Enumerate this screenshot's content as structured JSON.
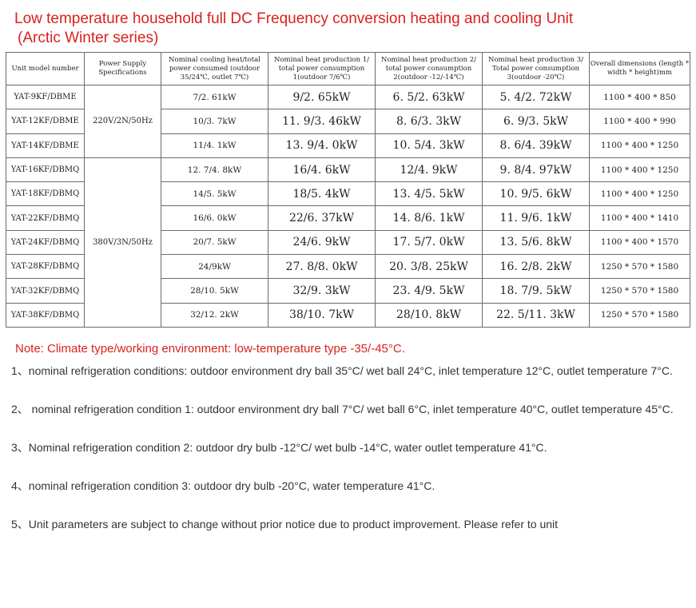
{
  "title": {
    "line1": "Low temperature household full DC Frequency conversion heating and cooling Unit",
    "line2": "(Arctic Winter series)"
  },
  "table": {
    "headers": [
      "Unit model number",
      "Power Supply Specifications",
      "Nominal cooling heat/total power consumed (outdoor 35/24℃, outlet 7℃)",
      "Nominal heat production 1/ total power consumption 1(outdoor 7/6℃)",
      "Nominal heat production 2/ total power consumption 2(outdoor -12/-14℃)",
      "Nominal heat production 3/ Total power consumption 3(outdoor -20℃)",
      "Overall dimensions (length * width * height)mm"
    ],
    "power_groups": [
      "220V/2N/50Hz",
      "380V/3N/50Hz"
    ],
    "rows": [
      {
        "model": "YAT-9KF/DBME",
        "cool": "7/2. 61kW",
        "h1": "9/2. 65kW",
        "h2": "6. 5/2. 63kW",
        "h3": "5. 4/2. 72kW",
        "dim": "1100 * 400 * 850"
      },
      {
        "model": "YAT-12KF/DBME",
        "cool": "10/3. 7kW",
        "h1": "11. 9/3. 46kW",
        "h2": "8. 6/3. 3kW",
        "h3": "6. 9/3. 5kW",
        "dim": "1100 * 400 * 990"
      },
      {
        "model": "YAT-14KF/DBME",
        "cool": "11/4. 1kW",
        "h1": "13. 9/4. 0kW",
        "h2": "10. 5/4. 3kW",
        "h3": "8. 6/4. 39kW",
        "dim": "1100 * 400 * 1250"
      },
      {
        "model": "YAT-16KF/DBMQ",
        "cool": "12. 7/4. 8kW",
        "h1": "16/4. 6kW",
        "h2": "12/4. 9kW",
        "h3": "9. 8/4. 97kW",
        "dim": "1100 * 400 * 1250"
      },
      {
        "model": "YAT-18KF/DBMQ",
        "cool": "14/5. 5kW",
        "h1": "18/5. 4kW",
        "h2": "13. 4/5. 5kW",
        "h3": "10. 9/5. 6kW",
        "dim": "1100 * 400 * 1250"
      },
      {
        "model": "YAT-22KF/DBMQ",
        "cool": "16/6. 0kW",
        "h1": "22/6. 37kW",
        "h2": "14. 8/6. 1kW",
        "h3": "11. 9/6. 1kW",
        "dim": "1100 * 400 * 1410"
      },
      {
        "model": "YAT-24KF/DBMQ",
        "cool": "20/7. 5kW",
        "h1": "24/6. 9kW",
        "h2": "17. 5/7. 0kW",
        "h3": "13. 5/6. 8kW",
        "dim": "1100 * 400 * 1570"
      },
      {
        "model": "YAT-28KF/DBMQ",
        "cool": "24/9kW",
        "h1": "27. 8/8. 0kW",
        "h2": "20. 3/8. 25kW",
        "h3": "16. 2/8. 2kW",
        "dim": "1250 * 570 * 1580"
      },
      {
        "model": "YAT-32KF/DBMQ",
        "cool": "28/10. 5kW",
        "h1": "32/9. 3kW",
        "h2": "23. 4/9. 5kW",
        "h3": "18. 7/9. 5kW",
        "dim": "1250 * 570 * 1580"
      },
      {
        "model": "YAT-38KF/DBMQ",
        "cool": "32/12. 2kW",
        "h1": "38/10. 7kW",
        "h2": "28/10. 8kW",
        "h3": "22. 5/11. 3kW",
        "dim": "1250 * 570 * 1580"
      }
    ]
  },
  "note": {
    "heading": "Note: Climate type/working environment: low-temperature type -35/-45°C.",
    "items": [
      "1、nominal refrigeration conditions: outdoor environment dry ball 35°C/ wet ball 24°C, inlet temperature 12°C, outlet temperature 7°C.",
      "2、 nominal refrigeration condition 1: outdoor environment dry ball 7°C/ wet ball 6°C, inlet temperature 40°C, outlet temperature 45°C.",
      "3、Nominal refrigeration condition 2: outdoor dry bulb -12°C/ wet bulb -14°C, water outlet temperature 41°C.",
      "4、nominal refrigeration condition 3: outdoor dry bulb -20°C, water temperature 41°C.",
      "5、Unit parameters are subject to change without prior notice due to product improvement. Please refer to unit"
    ]
  },
  "colors": {
    "accent_red": "#d9211e",
    "text": "#333333",
    "border": "#6b6b6b"
  }
}
